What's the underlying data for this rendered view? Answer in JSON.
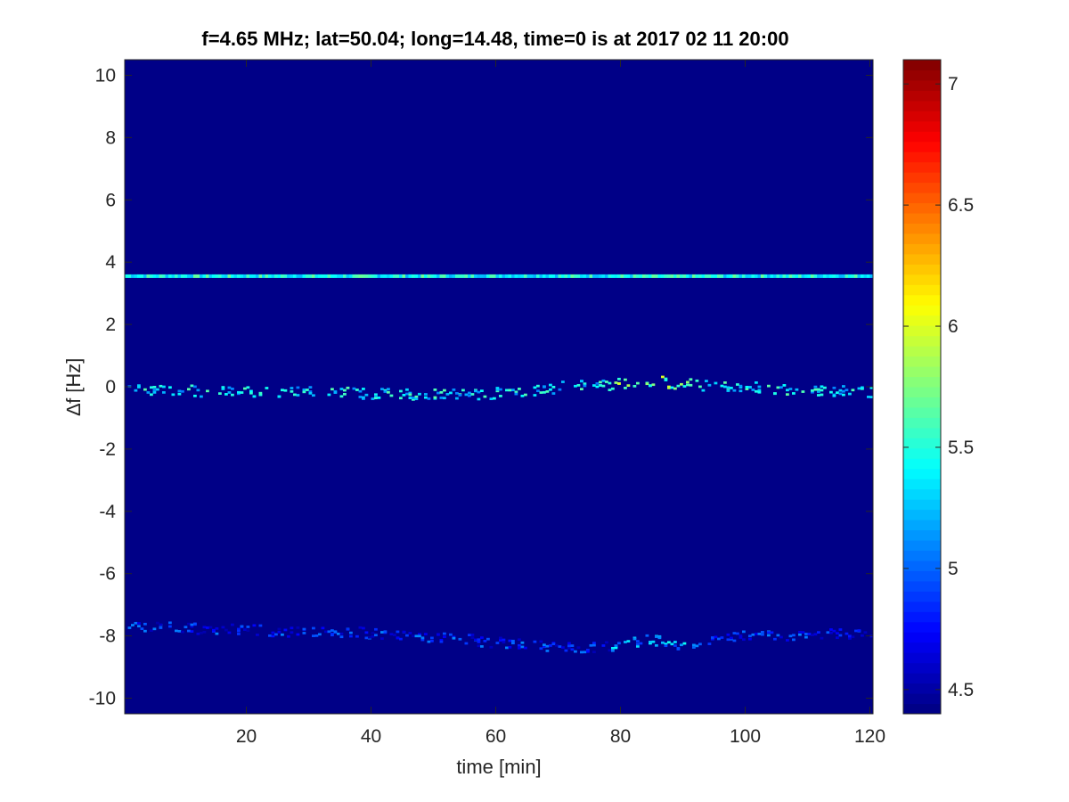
{
  "chart_data": {
    "type": "heatmap",
    "title": "f=4.65 MHz;  lat=50.04; long=14.48, time=0 is at 2017 02 11 20:00",
    "xlabel": "time [min]",
    "ylabel": "∆f [Hz]",
    "xlim": [
      0.5,
      120.5
    ],
    "ylim": [
      -10.5,
      10.5
    ],
    "clim": [
      4.4,
      7.1
    ],
    "colormap": "jet",
    "background_value": 4.42,
    "x_ticks": [
      20,
      40,
      60,
      80,
      100,
      120
    ],
    "x_tick_labels": [
      "20",
      "40",
      "60",
      "80",
      "100",
      "120"
    ],
    "y_ticks": [
      -10,
      -8,
      -6,
      -4,
      -2,
      0,
      2,
      4,
      6,
      8,
      10
    ],
    "y_tick_labels": [
      "-10",
      "-8",
      "-6",
      "-4",
      "-2",
      "0",
      "2",
      "4",
      "6",
      "8",
      "10"
    ],
    "colorbar_ticks": [
      4.5,
      5,
      5.5,
      6,
      6.5,
      7
    ],
    "colorbar_tick_labels": [
      "4.5",
      "5",
      "5.5",
      "6",
      "6.5",
      "7"
    ],
    "features": [
      {
        "kind": "constant-line",
        "y": 3.55,
        "x_range": [
          0.5,
          120.5
        ],
        "level": 5.45
      },
      {
        "kind": "trace",
        "level": 5.3,
        "points": [
          [
            1,
            -0.1
          ],
          [
            20,
            -0.15
          ],
          [
            40,
            -0.2
          ],
          [
            50,
            -0.25
          ],
          [
            60,
            -0.2
          ],
          [
            65,
            -0.15
          ],
          [
            70,
            0.0
          ],
          [
            80,
            0.1
          ],
          [
            85,
            0.2
          ],
          [
            90,
            0.1
          ],
          [
            100,
            0.0
          ],
          [
            110,
            -0.1
          ],
          [
            120,
            -0.15
          ]
        ]
      },
      {
        "kind": "trace",
        "level": 4.75,
        "points": [
          [
            1,
            -7.7
          ],
          [
            20,
            -7.8
          ],
          [
            40,
            -7.9
          ],
          [
            55,
            -8.1
          ],
          [
            65,
            -8.3
          ],
          [
            75,
            -8.4
          ],
          [
            85,
            -8.1
          ],
          [
            90,
            -8.3
          ],
          [
            100,
            -8.0
          ],
          [
            120,
            -7.9
          ]
        ]
      }
    ]
  }
}
